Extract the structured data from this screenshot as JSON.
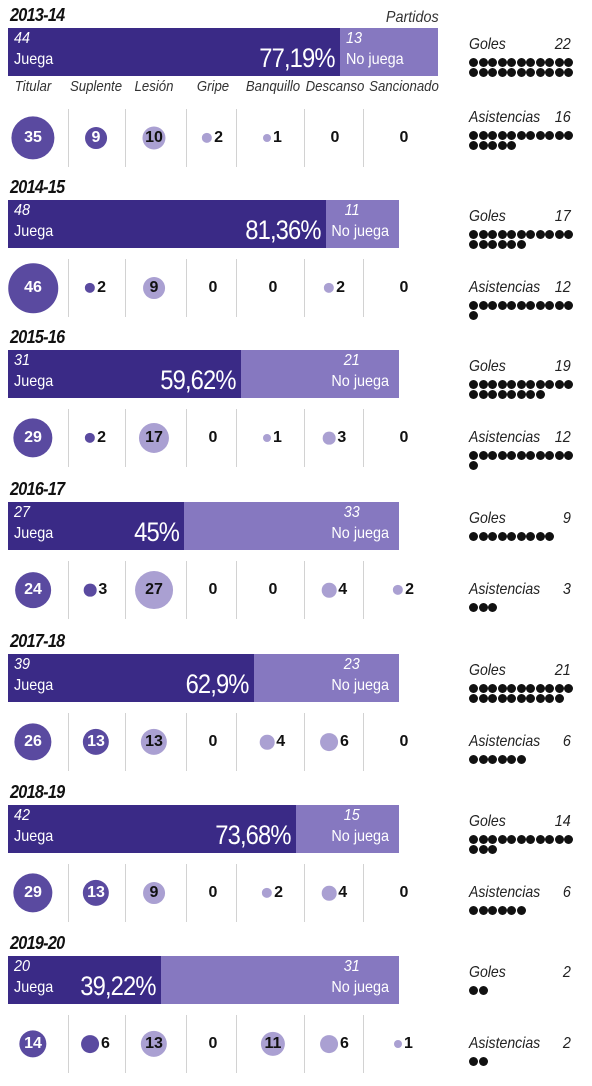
{
  "chart_data": {
    "type": "bar",
    "partidos_label": "Partidos",
    "stat_labels": {
      "goles": "Goles",
      "asistencias": "Asistencias"
    },
    "categories": [
      "Titular",
      "Suplente",
      "Lesión",
      "Gripe",
      "Banquillo",
      "Descanso",
      "Sancionado"
    ],
    "play_label": "Juega",
    "rest_label": "No juega",
    "colors": {
      "juega": "#3a2a86",
      "no_juega": "#8678c0",
      "play_circle": "#5a4aa0",
      "rest_circle": "#aaa0d2"
    },
    "seasons": [
      {
        "year": "2013-14",
        "juega": 44,
        "no_juega": 13,
        "pct": "77,19%",
        "counts": [
          35,
          9,
          10,
          2,
          1,
          0,
          0
        ],
        "goles": 22,
        "asistencias": 16
      },
      {
        "year": "2014-15",
        "juega": 48,
        "no_juega": 11,
        "pct": "81,36%",
        "counts": [
          46,
          2,
          9,
          0,
          0,
          2,
          0
        ],
        "goles": 17,
        "asistencias": 12
      },
      {
        "year": "2015-16",
        "juega": 31,
        "no_juega": 21,
        "pct": "59,62%",
        "counts": [
          29,
          2,
          17,
          0,
          1,
          3,
          0
        ],
        "goles": 19,
        "asistencias": 12
      },
      {
        "year": "2016-17",
        "juega": 27,
        "no_juega": 33,
        "pct": "45%",
        "counts": [
          24,
          3,
          27,
          0,
          0,
          4,
          2
        ],
        "goles": 9,
        "asistencias": 3
      },
      {
        "year": "2017-18",
        "juega": 39,
        "no_juega": 23,
        "pct": "62,9%",
        "counts": [
          26,
          13,
          13,
          0,
          4,
          6,
          0
        ],
        "goles": 21,
        "asistencias": 6
      },
      {
        "year": "2018-19",
        "juega": 42,
        "no_juega": 15,
        "pct": "73,68%",
        "counts": [
          29,
          13,
          9,
          0,
          2,
          4,
          0
        ],
        "goles": 14,
        "asistencias": 6
      },
      {
        "year": "2019-20",
        "juega": 20,
        "no_juega": 31,
        "pct": "39,22%",
        "counts": [
          14,
          6,
          13,
          0,
          11,
          6,
          1
        ],
        "goles": 2,
        "asistencias": 2
      }
    ]
  }
}
